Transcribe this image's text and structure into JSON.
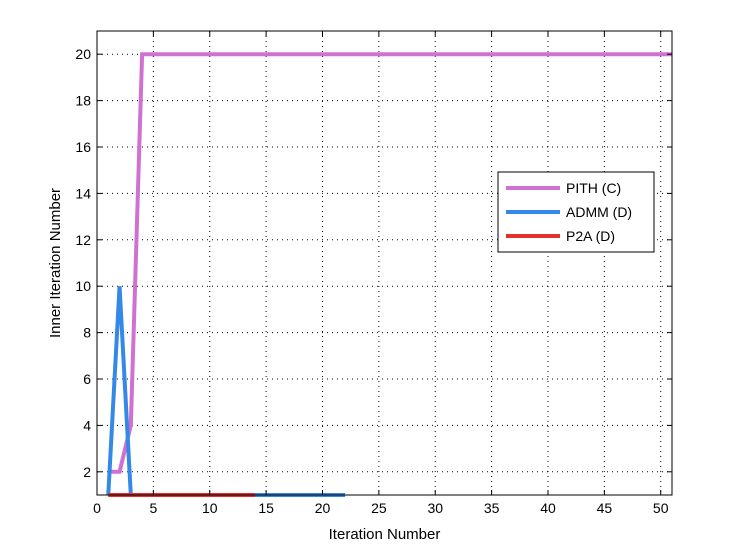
{
  "chart_data": {
    "type": "line",
    "title": "",
    "xlabel": "Iteration Number",
    "ylabel": "Inner Iteration Number",
    "xlim": [
      0,
      51
    ],
    "ylim": [
      1,
      21
    ],
    "xticks": [
      0,
      5,
      10,
      15,
      20,
      25,
      30,
      35,
      40,
      45,
      50
    ],
    "yticks": [
      2,
      4,
      6,
      8,
      10,
      12,
      14,
      16,
      18,
      20
    ],
    "grid": true,
    "grid_style": "dotted",
    "legend_position": "right",
    "series": [
      {
        "name": "PITH (C)",
        "color": "#d070d0",
        "x": [
          1,
          2,
          3,
          4,
          5,
          6,
          7,
          8,
          9,
          10,
          11,
          12,
          13,
          14,
          15,
          16,
          17,
          18,
          19,
          20,
          21,
          22,
          23,
          24,
          25,
          26,
          27,
          28,
          29,
          30,
          31,
          32,
          33,
          34,
          35,
          36,
          37,
          38,
          39,
          40,
          41,
          42,
          43,
          44,
          45,
          46,
          47,
          48,
          49,
          50,
          51
        ],
        "y": [
          2,
          2,
          4,
          20,
          20,
          20,
          20,
          20,
          20,
          20,
          20,
          20,
          20,
          20,
          20,
          20,
          20,
          20,
          20,
          20,
          20,
          20,
          20,
          20,
          20,
          20,
          20,
          20,
          20,
          20,
          20,
          20,
          20,
          20,
          20,
          20,
          20,
          20,
          20,
          20,
          20,
          20,
          20,
          20,
          20,
          20,
          20,
          20,
          20,
          20,
          20
        ]
      },
      {
        "name": "ADMM (D)",
        "color": "#3388e8",
        "x": [
          1,
          2,
          3,
          4,
          5,
          6,
          7,
          8,
          9,
          10,
          11,
          12,
          13,
          14,
          15,
          16,
          17,
          18,
          19,
          20,
          21,
          22
        ],
        "y": [
          1,
          10,
          1,
          1,
          1,
          1,
          1,
          1,
          1,
          1,
          1,
          1,
          1,
          1,
          1,
          1,
          1,
          1,
          1,
          1,
          1,
          1
        ]
      },
      {
        "name": "P2A (D)",
        "color": "#e03030",
        "x": [
          1,
          2,
          3,
          4,
          5,
          6,
          7,
          8,
          9,
          10,
          11,
          12,
          13,
          14
        ],
        "y": [
          1,
          1,
          1,
          1,
          1,
          1,
          1,
          1,
          1,
          1,
          1,
          1,
          1,
          1
        ]
      }
    ]
  }
}
